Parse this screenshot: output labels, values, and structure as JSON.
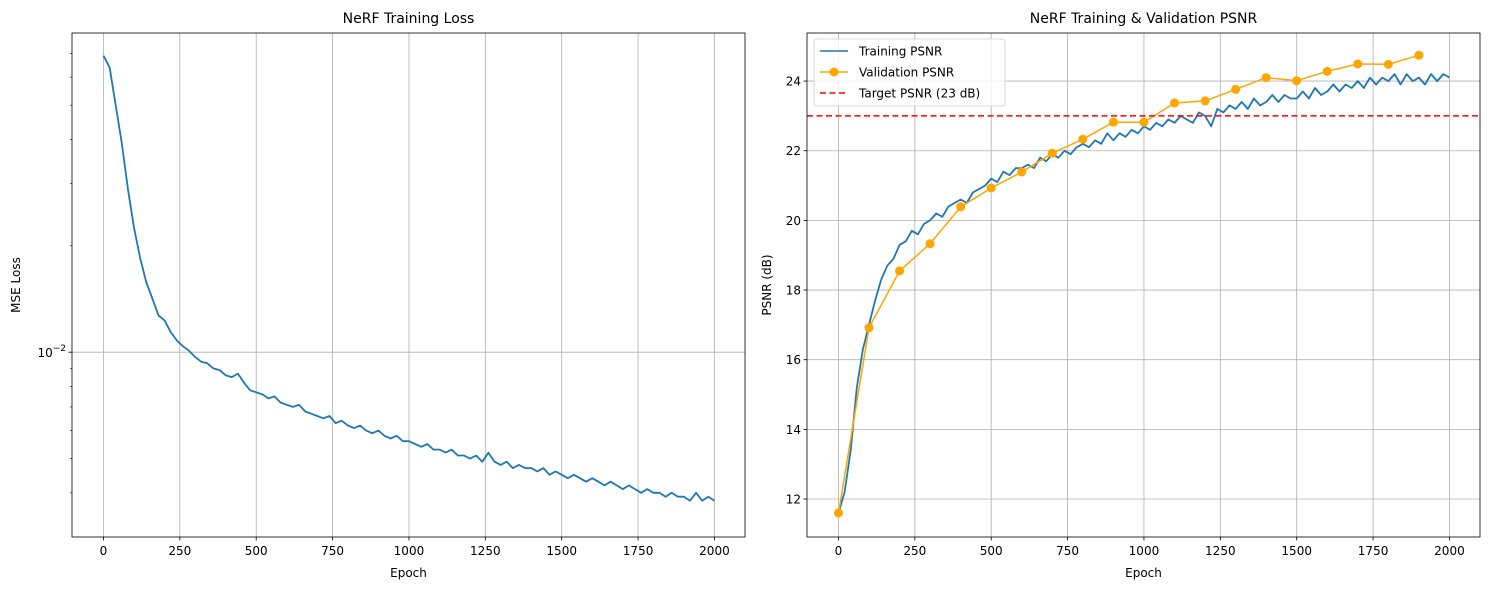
{
  "chart_data": [
    {
      "type": "line",
      "title": "NeRF Training Loss",
      "xlabel": "Epoch",
      "ylabel": "MSE Loss",
      "xlim": [
        -103,
        2100
      ],
      "ylim": [
        0.003,
        0.08
      ],
      "yscale": "log",
      "grid": true,
      "xticks": [
        0,
        250,
        500,
        750,
        1000,
        1250,
        1500,
        1750,
        2000
      ],
      "yticks_major": [
        {
          "value": 0.01,
          "label_base": "10",
          "label_exp": "−2"
        }
      ],
      "yticks_minor": [
        0.004,
        0.005,
        0.006,
        0.007,
        0.008,
        0.009,
        0.02,
        0.03,
        0.04,
        0.05,
        0.06,
        0.07
      ],
      "series": [
        {
          "color": "#1f77b4",
          "x_step": 20,
          "values": [
            0.069,
            0.064,
            0.05,
            0.039,
            0.029,
            0.0225,
            0.0185,
            0.0158,
            0.0142,
            0.0127,
            0.0123,
            0.0114,
            0.0108,
            0.0104,
            0.0101,
            0.0097,
            0.0094,
            0.0093,
            0.009,
            0.0089,
            0.0086,
            0.0085,
            0.0087,
            0.0082,
            0.0078,
            0.0077,
            0.0076,
            0.0074,
            0.0075,
            0.0072,
            0.0071,
            0.007,
            0.0071,
            0.0068,
            0.0067,
            0.0066,
            0.0065,
            0.0066,
            0.0063,
            0.0064,
            0.0062,
            0.0061,
            0.0062,
            0.006,
            0.0059,
            0.006,
            0.0058,
            0.0057,
            0.0058,
            0.0056,
            0.0056,
            0.0055,
            0.0054,
            0.0055,
            0.0053,
            0.0053,
            0.0052,
            0.0053,
            0.0051,
            0.0051,
            0.005,
            0.0051,
            0.0049,
            0.0052,
            0.0049,
            0.0048,
            0.0049,
            0.0047,
            0.0048,
            0.0047,
            0.0047,
            0.0046,
            0.0047,
            0.0045,
            0.0046,
            0.0045,
            0.0044,
            0.0045,
            0.0044,
            0.0043,
            0.0044,
            0.0043,
            0.0042,
            0.0043,
            0.0042,
            0.0041,
            0.0042,
            0.0041,
            0.004,
            0.0041,
            0.004,
            0.004,
            0.0039,
            0.004,
            0.0039,
            0.0039,
            0.0038,
            0.004,
            0.0038,
            0.0039,
            0.0038
          ]
        }
      ]
    },
    {
      "type": "line",
      "title": "NeRF Training & Validation PSNR",
      "xlabel": "Epoch",
      "ylabel": "PSNR (dB)",
      "xlim": [
        -103,
        2100
      ],
      "ylim": [
        10.91,
        25.38
      ],
      "grid": true,
      "legend": "upper-left",
      "xticks": [
        0,
        250,
        500,
        750,
        1000,
        1250,
        1500,
        1750,
        2000
      ],
      "yticks": [
        12,
        14,
        16,
        18,
        20,
        22,
        24
      ],
      "series": [
        {
          "name": "Training PSNR",
          "color": "#1f77b4",
          "x_step": 20,
          "values": [
            11.6,
            12.2,
            13.4,
            15.2,
            16.3,
            17.0,
            17.7,
            18.3,
            18.7,
            18.9,
            19.3,
            19.4,
            19.7,
            19.6,
            19.9,
            20.0,
            20.2,
            20.1,
            20.4,
            20.5,
            20.6,
            20.5,
            20.8,
            20.9,
            21.0,
            21.2,
            21.1,
            21.4,
            21.3,
            21.5,
            21.5,
            21.6,
            21.5,
            21.8,
            21.7,
            21.9,
            21.8,
            22.0,
            21.9,
            22.1,
            22.2,
            22.1,
            22.3,
            22.2,
            22.5,
            22.3,
            22.5,
            22.4,
            22.6,
            22.5,
            22.7,
            22.6,
            22.8,
            22.7,
            22.9,
            22.8,
            23.0,
            22.9,
            22.8,
            23.1,
            23.0,
            22.7,
            23.2,
            23.1,
            23.3,
            23.2,
            23.4,
            23.2,
            23.5,
            23.3,
            23.4,
            23.6,
            23.4,
            23.6,
            23.5,
            23.5,
            23.7,
            23.5,
            23.8,
            23.6,
            23.7,
            23.9,
            23.7,
            23.9,
            23.8,
            24.0,
            23.8,
            24.1,
            23.9,
            24.1,
            24.0,
            24.2,
            23.9,
            24.2,
            24.0,
            24.1,
            23.9,
            24.2,
            24.0,
            24.2,
            24.1
          ]
        },
        {
          "name": "Validation PSNR",
          "color": "#ffa500",
          "marker": "circle",
          "x": [
            0,
            100,
            200,
            300,
            400,
            500,
            600,
            700,
            800,
            900,
            1000,
            1100,
            1200,
            1300,
            1400,
            1500,
            1600,
            1700,
            1800,
            1900
          ],
          "values": [
            11.6,
            16.92,
            18.55,
            19.33,
            20.39,
            20.93,
            21.39,
            21.93,
            22.33,
            22.82,
            22.82,
            23.37,
            23.43,
            23.76,
            24.1,
            24.01,
            24.28,
            24.49,
            24.48,
            24.74
          ]
        },
        {
          "name": "Target PSNR (23 dB)",
          "color": "#ff0000",
          "style": "dashed",
          "y": 23
        }
      ]
    }
  ]
}
